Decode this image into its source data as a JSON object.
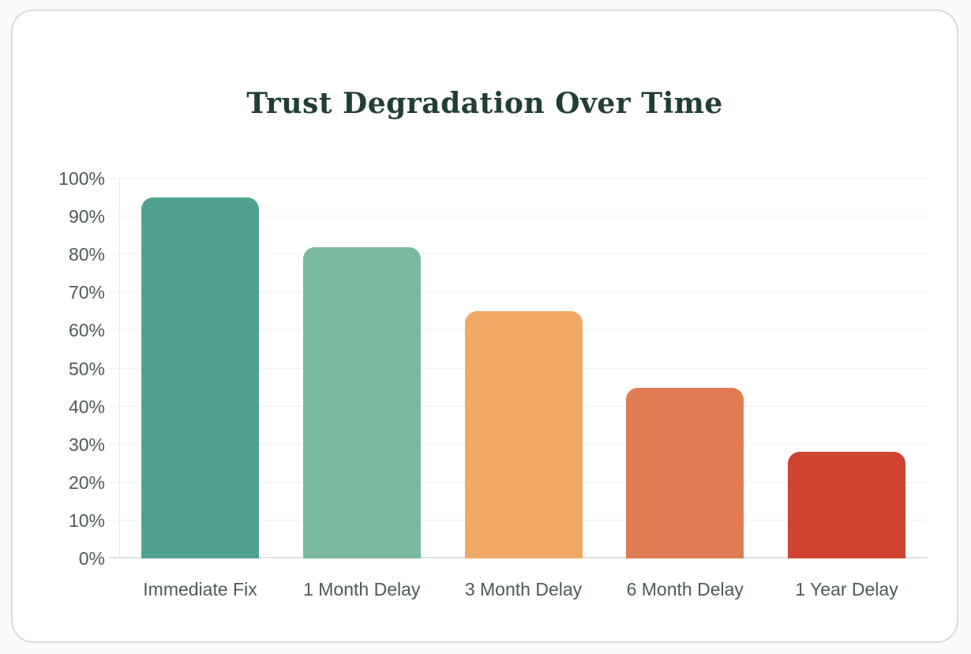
{
  "colors": {
    "page_background": "#FBFAF9",
    "card_background": "#FFFFFF",
    "card_border": "#D2DEDA",
    "title": "#203E37",
    "axis_label": "#4D5A58",
    "gridline": "#EDF1F4",
    "baseline": "#DFE3E5",
    "axis_line": "#E4E9E7"
  },
  "chart_data": {
    "type": "bar",
    "title": "Trust Degradation Over Time",
    "categories": [
      "Immediate Fix",
      "1 Month Delay",
      "3 Month Delay",
      "6 Month Delay",
      "1 Year Delay"
    ],
    "values": [
      95,
      82,
      65,
      45,
      28
    ],
    "unit": "%",
    "bar_colors": [
      "#4FA28F",
      "#7AB9A0",
      "#F0A964",
      "#E07C53",
      "#CE4430"
    ],
    "xlabel": "",
    "ylabel": "",
    "ylim": [
      0,
      100
    ],
    "ytick_step": 10,
    "ytick_labels": [
      "0%",
      "10%",
      "20%",
      "30%",
      "40%",
      "50%",
      "60%",
      "70%",
      "80%",
      "90%",
      "100%"
    ],
    "grid": true,
    "legend": "none"
  }
}
